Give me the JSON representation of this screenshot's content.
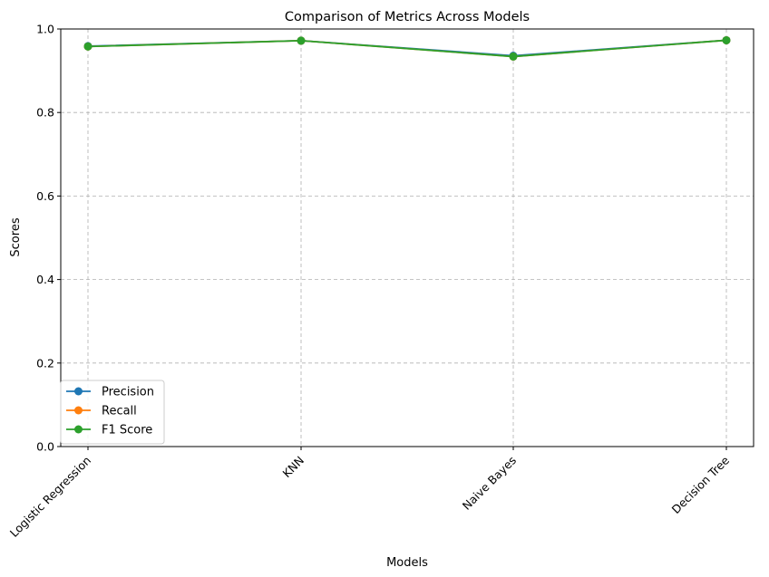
{
  "chart_data": {
    "type": "line",
    "title": "Comparison of Metrics Across Models",
    "xlabel": "Models",
    "ylabel": "Scores",
    "categories": [
      "Logistic Regression",
      "KNN",
      "Naive Bayes",
      "Decision Tree"
    ],
    "ylim": [
      0.0,
      1.0
    ],
    "yticks": [
      "0.0",
      "0.2",
      "0.4",
      "0.6",
      "0.8",
      "1.0"
    ],
    "grid": true,
    "legend_position": "lower-left",
    "series": [
      {
        "name": "Precision",
        "color": "#1f77b4",
        "values": [
          0.959,
          0.972,
          0.936,
          0.973
        ]
      },
      {
        "name": "Recall",
        "color": "#ff7f0e",
        "values": [
          0.958,
          0.972,
          0.934,
          0.973
        ]
      },
      {
        "name": "F1 Score",
        "color": "#2ca02c",
        "values": [
          0.958,
          0.972,
          0.934,
          0.973
        ]
      }
    ]
  }
}
